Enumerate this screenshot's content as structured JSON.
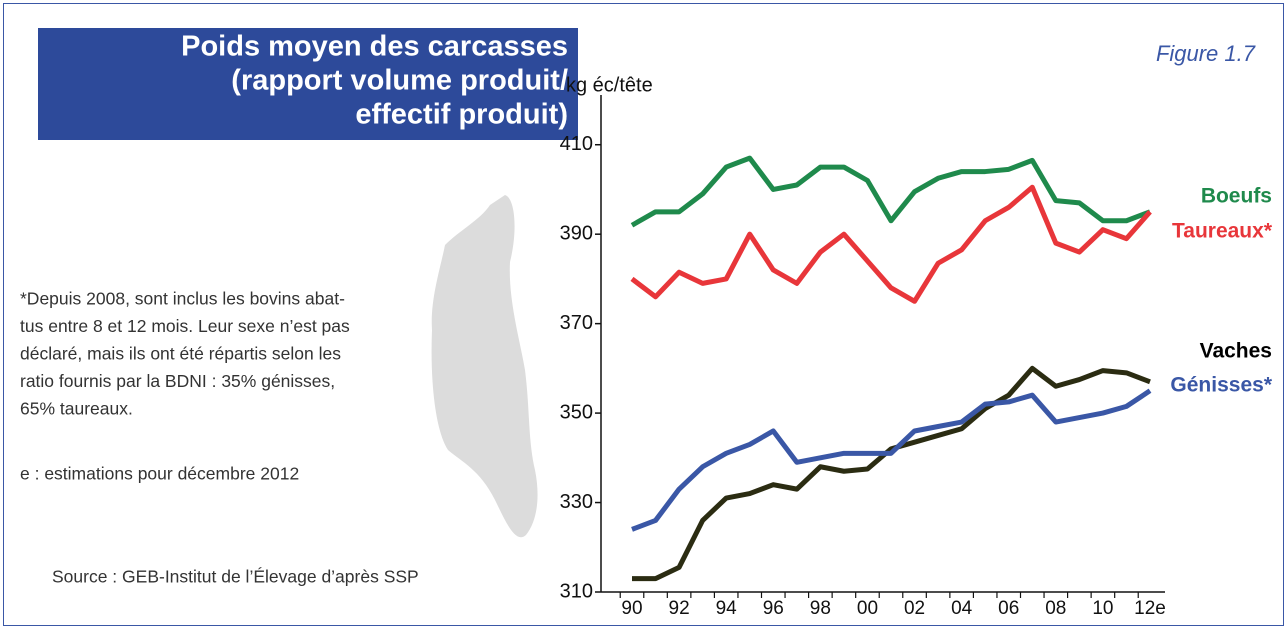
{
  "chart_data": {
    "type": "line",
    "title_lines": [
      "Poids moyen des carcasses",
      "(rapport volume produit/",
      "effectif produit)"
    ],
    "figure_label": "Figure 1.7",
    "y_label": "kg éc/tête",
    "note_lines": [
      "*Depuis 2008, sont inclus les bovins abat-",
      "tus entre 8 et 12 mois. Leur sexe n’est pas",
      "déclaré, mais ils ont été répartis selon les",
      "ratio fournis par la BDNI : 35% génisses,",
      "65% taureaux."
    ],
    "estimate_note": "e : estimations pour décembre 2012",
    "source": "Source : GEB-Institut de l’Élevage d’après SSP",
    "categories": [
      "90",
      null,
      "92",
      null,
      "94",
      null,
      "96",
      null,
      "98",
      null,
      "00",
      null,
      "02",
      null,
      "04",
      null,
      "06",
      null,
      "08",
      null,
      "10",
      null,
      "12e"
    ],
    "ylim": [
      310,
      420
    ],
    "yticks": [
      310,
      330,
      350,
      370,
      390,
      410
    ],
    "series": [
      {
        "name": "Boeufs",
        "color": "#1f8a4c",
        "values": [
          392,
          395,
          395,
          399,
          405,
          407,
          400,
          401,
          405,
          405,
          402,
          393,
          399.5,
          402.5,
          404,
          404,
          404.5,
          406.5,
          397.5,
          397,
          393,
          393,
          395
        ]
      },
      {
        "name": "Taureaux*",
        "color": "#e8363a",
        "values": [
          380,
          376,
          381.5,
          379,
          380,
          390,
          382,
          379,
          386,
          390,
          384,
          378,
          375,
          383.5,
          386.5,
          393,
          396,
          400.5,
          388,
          386,
          391,
          389,
          395
        ]
      },
      {
        "name": "Vaches",
        "color": "#2b2c12",
        "values": [
          313,
          313,
          315.5,
          326,
          331,
          332,
          334,
          333,
          338,
          337,
          337.5,
          342,
          343.5,
          345,
          346.5,
          351,
          354,
          360,
          356,
          357.5,
          359.5,
          359,
          357
        ]
      },
      {
        "name": "Génisses*",
        "color": "#3a57a6",
        "values": [
          324,
          326,
          333,
          338,
          341,
          343,
          346,
          339,
          340,
          341,
          341,
          341,
          346,
          347,
          348,
          352,
          352.5,
          354,
          348,
          349,
          350,
          351.5,
          355
        ]
      }
    ]
  }
}
